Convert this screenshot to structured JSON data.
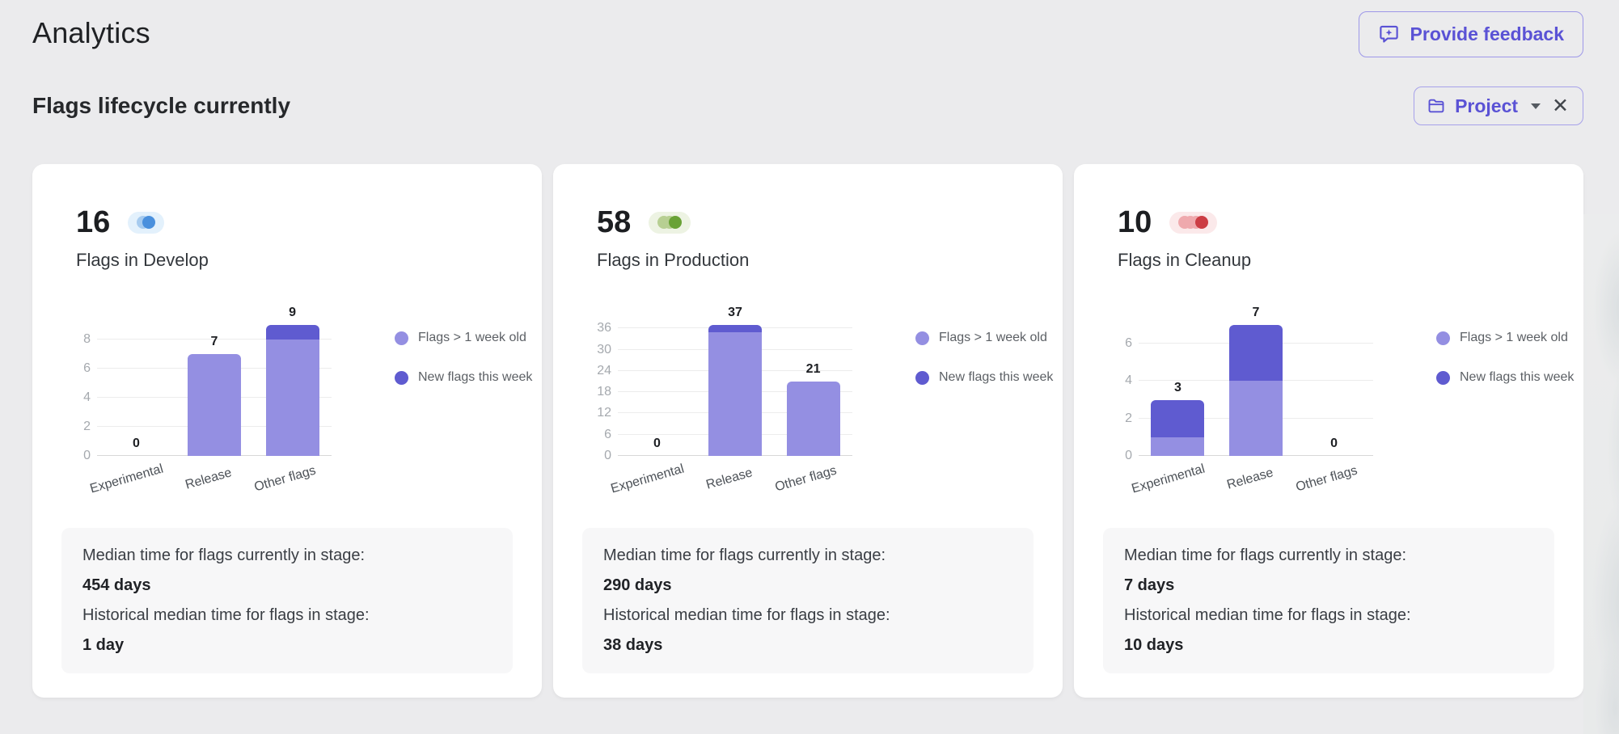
{
  "header": {
    "title": "Analytics",
    "feedback_label": "Provide feedback"
  },
  "section": {
    "title": "Flags lifecycle currently",
    "filter_label": "Project"
  },
  "colors": {
    "accent": "#5a52d5",
    "bar_light": "#948fe2",
    "bar_dark": "#5f5bd0",
    "develop_dot": "#4a90dd",
    "develop_faint": "#a6cbef",
    "develop_bg": "#e3f1fc",
    "production_dot": "#69a236",
    "production_faint": "#b7cf92",
    "production_bg": "#edf3e3",
    "cleanup_dot": "#cc3d44",
    "cleanup_faint": "#efa9ad",
    "cleanup_bg": "#fbe9ea"
  },
  "cards": [
    {
      "count": "16",
      "title": "Flags in Develop",
      "stage": "develop",
      "badge_dots": 2,
      "median_label": "Median time for flags currently in stage:",
      "median_value": "454 days",
      "historical_label": "Historical median time for flags in stage:",
      "historical_value": "1 day"
    },
    {
      "count": "58",
      "title": "Flags in Production",
      "stage": "production",
      "badge_dots": 3,
      "median_label": "Median time for flags currently in stage:",
      "median_value": "290 days",
      "historical_label": "Historical median time for flags in stage:",
      "historical_value": "38 days"
    },
    {
      "count": "10",
      "title": "Flags in Cleanup",
      "stage": "cleanup",
      "badge_dots": 4,
      "median_label": "Median time for flags currently in stage:",
      "median_value": "7 days",
      "historical_label": "Historical median time for flags in stage:",
      "historical_value": "10 days"
    }
  ],
  "chart_data": [
    {
      "type": "bar",
      "stacked": true,
      "title": "Flags in Develop",
      "categories": [
        "Experimental",
        "Release",
        "Other flags"
      ],
      "series": [
        {
          "name": "Flags > 1 week old",
          "values": [
            0,
            7,
            8
          ],
          "color": "#948fe2"
        },
        {
          "name": "New flags this week",
          "values": [
            0,
            0,
            1
          ],
          "color": "#5f5bd0"
        }
      ],
      "totals": [
        0,
        7,
        9
      ],
      "yticks": [
        0,
        2,
        4,
        6,
        8
      ],
      "ylim": [
        0,
        9
      ],
      "grid": true,
      "legend_position": "right"
    },
    {
      "type": "bar",
      "stacked": true,
      "title": "Flags in Production",
      "categories": [
        "Experimental",
        "Release",
        "Other flags"
      ],
      "series": [
        {
          "name": "Flags > 1 week old",
          "values": [
            0,
            35,
            21
          ],
          "color": "#948fe2"
        },
        {
          "name": "New flags this week",
          "values": [
            0,
            2,
            0
          ],
          "color": "#5f5bd0"
        }
      ],
      "totals": [
        0,
        37,
        21
      ],
      "yticks": [
        0,
        6,
        12,
        18,
        24,
        30,
        36
      ],
      "ylim": [
        0,
        37
      ],
      "grid": true,
      "legend_position": "right"
    },
    {
      "type": "bar",
      "stacked": true,
      "title": "Flags in Cleanup",
      "categories": [
        "Experimental",
        "Release",
        "Other flags"
      ],
      "series": [
        {
          "name": "Flags > 1 week old",
          "values": [
            1,
            4,
            0
          ],
          "color": "#948fe2"
        },
        {
          "name": "New flags this week",
          "values": [
            2,
            3,
            0
          ],
          "color": "#5f5bd0"
        }
      ],
      "totals": [
        3,
        7,
        0
      ],
      "yticks": [
        0,
        2,
        4,
        6
      ],
      "ylim": [
        0,
        7
      ],
      "grid": true,
      "legend_position": "right"
    }
  ]
}
